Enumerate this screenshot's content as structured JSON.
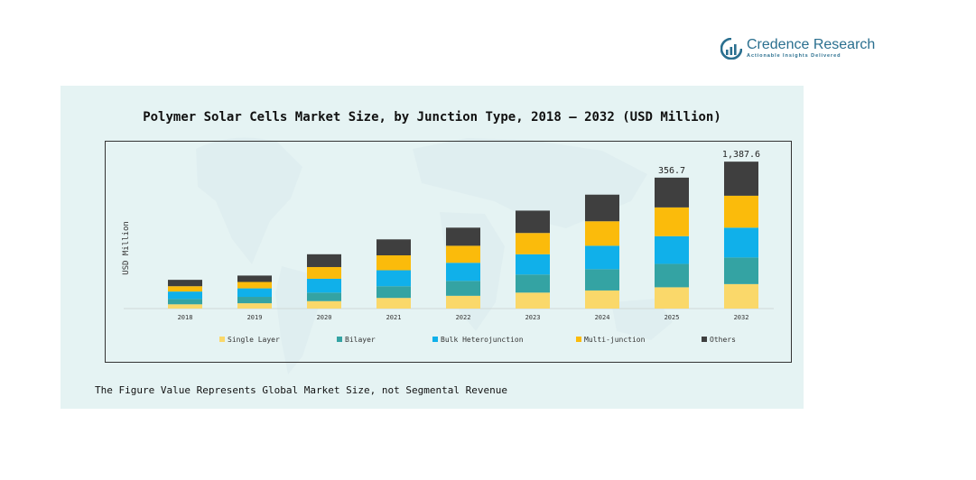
{
  "brand": {
    "name": "Credence Research",
    "tagline": "Actionable Insights Delivered",
    "color": "#2a6f8f"
  },
  "footnote": "The Figure Value Represents Global Market Size, not Segmental Revenue",
  "chart_data": {
    "type": "bar",
    "stacked": true,
    "title": "Polymer Solar Cells Market Size, by Junction Type, 2018  –  2032 (USD Million)",
    "xlabel": "",
    "ylabel": "USD Million",
    "grid": false,
    "legend_position": "bottom",
    "categories": [
      "2018",
      "2019",
      "2020",
      "2021",
      "2022",
      "2023",
      "2024",
      "2025",
      "2032"
    ],
    "series": [
      {
        "name": "Single Layer",
        "color": "#fad86a",
        "values": [
          4,
          5,
          7,
          10,
          12,
          15,
          17,
          20,
          23
        ]
      },
      {
        "name": "Bilayer",
        "color": "#34a3a3",
        "values": [
          5,
          6,
          8,
          11,
          14,
          17,
          20,
          22,
          25
        ]
      },
      {
        "name": "Bulk Heterojunction",
        "color": "#10b0ea",
        "values": [
          7,
          8,
          13,
          15,
          17,
          19,
          22,
          26,
          28
        ]
      },
      {
        "name": "Multi-junction",
        "color": "#fbbb0b",
        "values": [
          5,
          6,
          11,
          14,
          16,
          20,
          23,
          27,
          30
        ]
      },
      {
        "name": "Others",
        "color": "#3f3f3f",
        "values": [
          6,
          6,
          12,
          15,
          17,
          21,
          25,
          28,
          32
        ]
      }
    ],
    "data_labels": [
      {
        "category": "2025",
        "text": "356.7"
      },
      {
        "category": "2032",
        "text": "1,387.6"
      }
    ]
  }
}
